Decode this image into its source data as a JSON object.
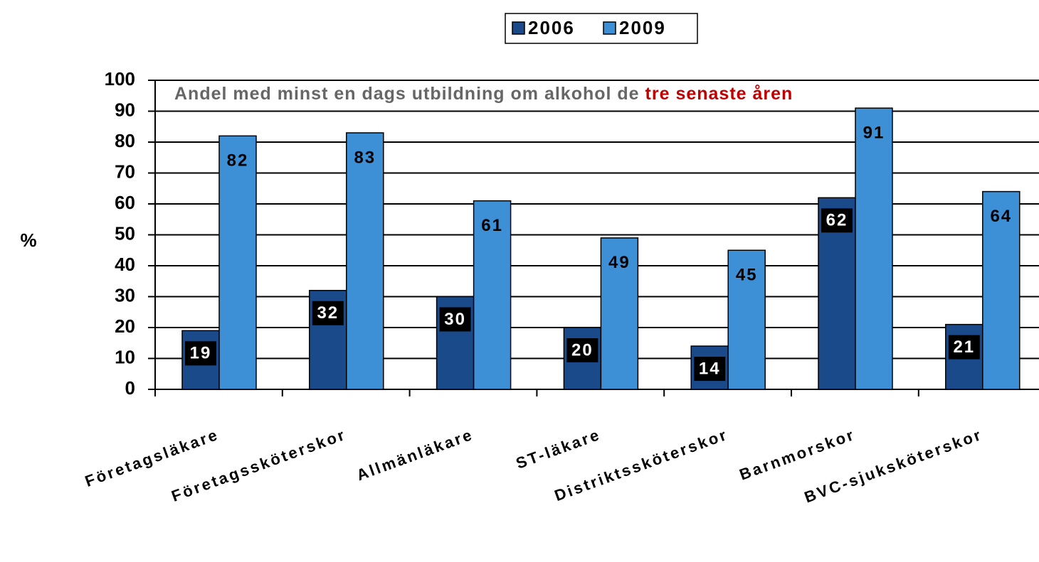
{
  "chart_data": {
    "type": "bar",
    "annotation": [
      {
        "text": "Andel med minst en dags utbildning om alkohol de",
        "color": "#666666"
      },
      {
        "text": "tre senaste åren",
        "color": "#c00000"
      }
    ],
    "ylabel": "%",
    "categories": [
      "Företagsläkare",
      "Företagssköterskor",
      "Allmänläkare",
      "ST-läkare",
      "Distriktssköterskor",
      "Barnmorskor",
      "BVC-sjuksköterskor"
    ],
    "series": [
      {
        "name": "2006",
        "color": "#1a4a8a",
        "values": [
          19,
          32,
          30,
          20,
          14,
          62,
          21
        ]
      },
      {
        "name": "2009",
        "color": "#3d8fd6",
        "values": [
          82,
          83,
          61,
          49,
          45,
          91,
          64
        ]
      }
    ],
    "ylim": [
      0,
      100
    ],
    "yticks": [
      0,
      10,
      20,
      30,
      40,
      50,
      60,
      70,
      80,
      90,
      100
    ],
    "grid": true,
    "legend": "top"
  }
}
